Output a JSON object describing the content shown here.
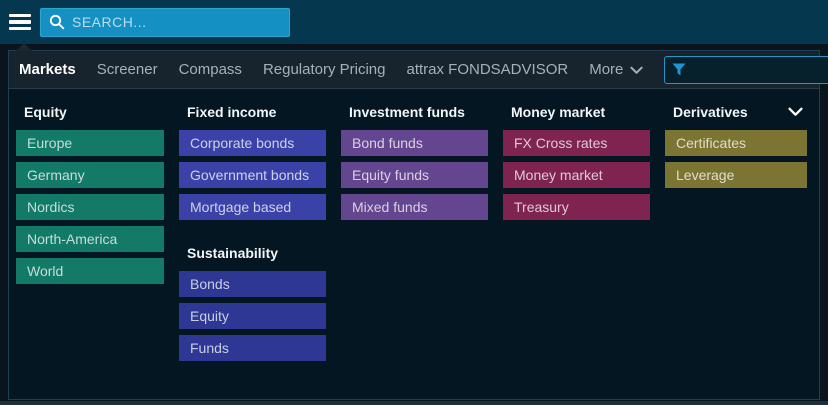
{
  "topbar": {
    "search_placeholder": "SEARCH..."
  },
  "nav": {
    "items": [
      {
        "label": "Markets",
        "active": true
      },
      {
        "label": "Screener",
        "active": false
      },
      {
        "label": "Compass",
        "active": false
      },
      {
        "label": "Regulatory Pricing",
        "active": false
      },
      {
        "label": "attrax FONDSADVISOR",
        "active": false
      }
    ],
    "more_label": "More",
    "filter_value": ""
  },
  "menu": {
    "columns": [
      {
        "groups": [
          {
            "title": "Equity",
            "color": "#137a67",
            "items": [
              "Europe",
              "Germany",
              "Nordics",
              "North-America",
              "World"
            ]
          }
        ]
      },
      {
        "groups": [
          {
            "title": "Fixed income",
            "color": "#3a42a8",
            "items": [
              "Corporate bonds",
              "Government bonds",
              "Mortgage based"
            ]
          },
          {
            "title": "Sustainability",
            "color": "#2e3793",
            "items": [
              "Bonds",
              "Equity",
              "Funds"
            ]
          }
        ]
      },
      {
        "groups": [
          {
            "title": "Investment funds",
            "color": "#64458f",
            "items": [
              "Bond funds",
              "Equity funds",
              "Mixed funds"
            ]
          }
        ]
      },
      {
        "groups": [
          {
            "title": "Money market",
            "color": "#7f2450",
            "items": [
              "FX Cross rates",
              "Money market",
              "Treasury"
            ]
          }
        ]
      },
      {
        "groups": [
          {
            "title": "Derivatives",
            "color": "#7c7433",
            "chevron": true,
            "items": [
              "Certificates",
              "Leverage"
            ]
          }
        ]
      }
    ]
  },
  "colors": {
    "accent": "#2598c8",
    "topbar_bg": "#05374f",
    "search_fill": "#1590c2",
    "panel_bg": "#031621",
    "nav_row_bg": "#18242d"
  }
}
